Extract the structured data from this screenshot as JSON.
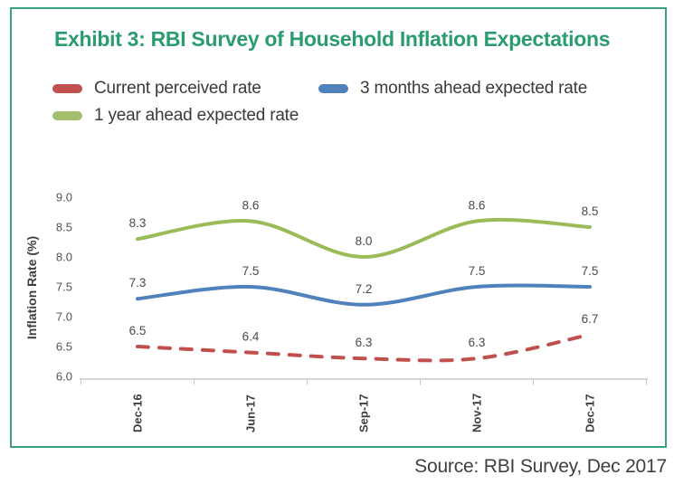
{
  "card": {
    "title": "Exhibit 3: RBI Survey of Household Inflation Expectations",
    "source": "Source: RBI Survey, Dec 2017"
  },
  "colors": {
    "border_green": "#3aa185",
    "title_green": "#2a9c6e",
    "axis_gray": "#c9c9c9",
    "tick_text": "#545454",
    "label_text": "#4a4a4a",
    "xlabel_text": "#3e3e3e"
  },
  "legend": [
    {
      "label": "Current perceived rate",
      "color": "#c0504d"
    },
    {
      "label": "3 months ahead expected rate",
      "color": "#4f81bd"
    },
    {
      "label": "1 year ahead expected rate",
      "color": "#a2bf6b"
    }
  ],
  "chart_data": {
    "type": "line",
    "smooth": true,
    "grid": false,
    "legend_position": "top-left",
    "title": "Exhibit 3: RBI Survey of Household Inflation Expectations",
    "xlabel": "",
    "ylabel": "Inflation Rate (%)",
    "ylim": [
      6.0,
      9.0
    ],
    "yticks": [
      9.0,
      8.5,
      8.0,
      7.5,
      7.0,
      6.5,
      6.0
    ],
    "categories": [
      "Dec-16",
      "Jun-17",
      "Sep-17",
      "Nov-17",
      "Dec-17"
    ],
    "series": [
      {
        "name": "Current perceived rate",
        "color": "#c0504d",
        "dashed": true,
        "values": [
          6.5,
          6.4,
          6.3,
          6.3,
          6.7
        ]
      },
      {
        "name": "3 months ahead expected rate",
        "color": "#4f81bd",
        "dashed": false,
        "values": [
          7.3,
          7.5,
          7.2,
          7.5,
          7.5
        ]
      },
      {
        "name": "1 year ahead expected rate",
        "color": "#9bbb59",
        "dashed": false,
        "values": [
          8.3,
          8.6,
          8.0,
          8.6,
          8.5
        ]
      }
    ],
    "data_labels": true,
    "source": "Source: RBI Survey, Dec 2017"
  }
}
